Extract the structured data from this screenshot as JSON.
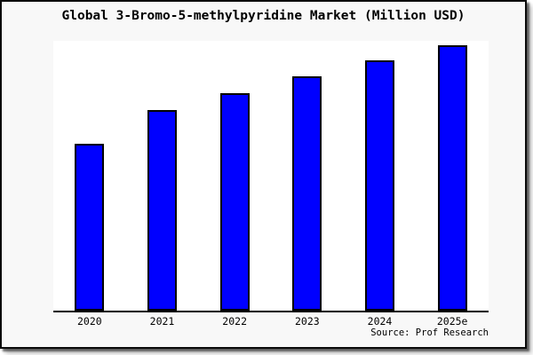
{
  "chart_data": {
    "type": "bar",
    "title": "Global 3-Bromo-5-methylpyridine Market (Million USD)",
    "categories": [
      "2020",
      "2021",
      "2022",
      "2023",
      "2024",
      "2025e"
    ],
    "values": [
      62.8,
      75.4,
      81.9,
      88.2,
      94.1,
      100
    ],
    "values_note": "no y-axis or data labels shown; values estimated from bar heights as an index with 2025e = 100",
    "xlabel": "",
    "ylabel": "",
    "ylim": [
      0,
      101.6
    ],
    "grid": false,
    "legend": "none",
    "source": "Source: Prof Research",
    "bar_color": "#0000ff",
    "bar_border_color": "#000000",
    "axis_color": "#000000",
    "plot_background": "#ffffff",
    "frame_background": "#f8f8f8",
    "frame_border_color": "#0a0a0a",
    "title_color": "#000000"
  }
}
